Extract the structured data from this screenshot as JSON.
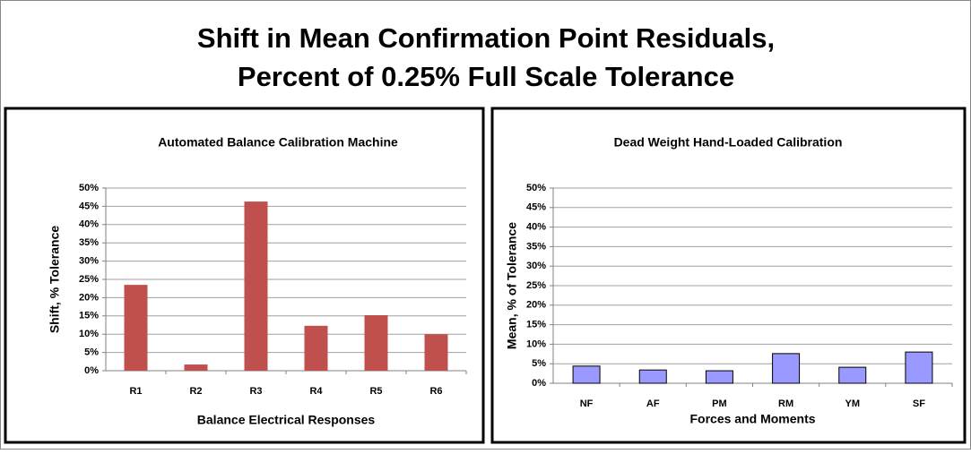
{
  "title": [
    "Shift in Mean Confirmation Point Residuals,",
    "Percent of 0.25% Full Scale Tolerance"
  ],
  "chart_data": [
    {
      "type": "bar",
      "title": "Automated Balance Calibration Machine",
      "x_label": "Balance Electrical Responses",
      "y_label": "Shift, % Tolerance",
      "categories": [
        "R1",
        "R2",
        "R3",
        "R4",
        "R5",
        "R6"
      ],
      "values": [
        23.5,
        1.7,
        46.3,
        12.3,
        15.2,
        10.0
      ],
      "color": "#c0504d",
      "grid": true,
      "ylim": [
        0,
        50
      ],
      "yticks": [
        {
          "value": 0,
          "label": "0%"
        },
        {
          "value": 5,
          "label": "5%"
        },
        {
          "value": 10,
          "label": "10%"
        },
        {
          "value": 15,
          "label": "15%"
        },
        {
          "value": 20,
          "label": "20%"
        },
        {
          "value": 25,
          "label": "25%"
        },
        {
          "value": 30,
          "label": "30%"
        },
        {
          "value": 35,
          "label": "35%"
        },
        {
          "value": 40,
          "label": "40%"
        },
        {
          "value": 45,
          "label": "45%"
        },
        {
          "value": 50,
          "label": "50%"
        }
      ]
    },
    {
      "type": "bar",
      "title": "Dead Weight Hand-Loaded Calibration",
      "x_label": "Forces and Moments",
      "y_label": "Mean, % of Tolerance",
      "categories": [
        "NF",
        "AF",
        "PM",
        "RM",
        "YM",
        "SF"
      ],
      "values": [
        4.4,
        3.4,
        3.2,
        7.6,
        4.1,
        8.0
      ],
      "color": "#9999ff",
      "grid": true,
      "ylim": [
        0,
        50
      ],
      "yticks": [
        {
          "value": 0,
          "label": "0%"
        },
        {
          "value": 5,
          "label": "5%"
        },
        {
          "value": 10,
          "label": "10%"
        },
        {
          "value": 15,
          "label": "15%"
        },
        {
          "value": 20,
          "label": "20%"
        },
        {
          "value": 25,
          "label": "25%"
        },
        {
          "value": 30,
          "label": "30%"
        },
        {
          "value": 35,
          "label": "35%"
        },
        {
          "value": 40,
          "label": "40%"
        },
        {
          "value": 45,
          "label": "45%"
        },
        {
          "value": 50,
          "label": "50%"
        }
      ]
    }
  ]
}
